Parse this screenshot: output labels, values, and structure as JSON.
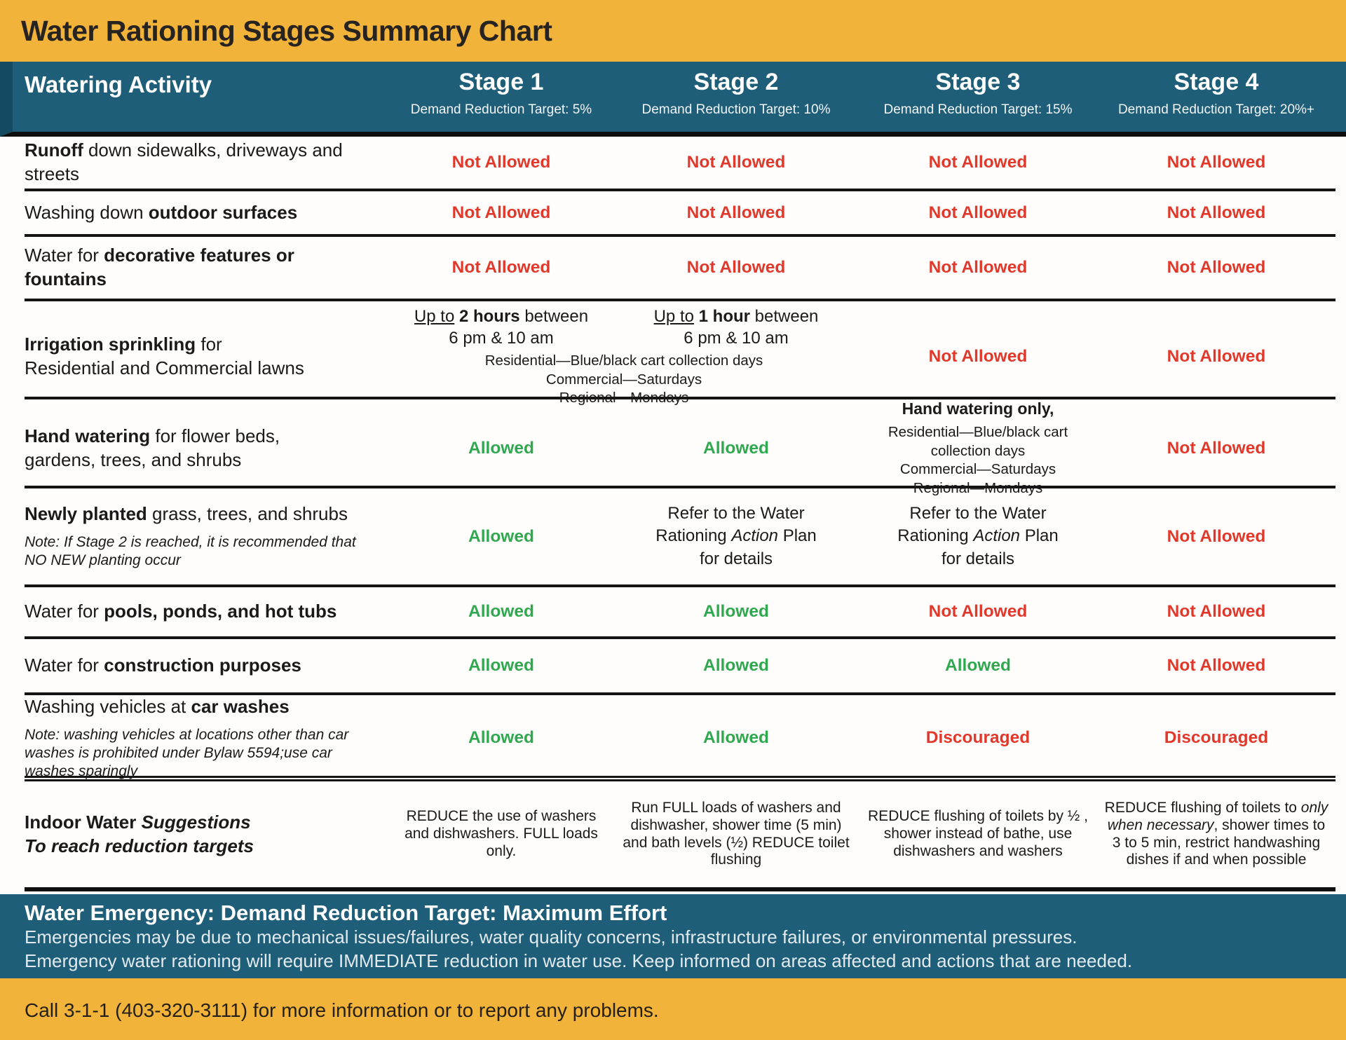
{
  "title": "Water Rationing Stages Summary Chart",
  "colors": {
    "yellow": "#F2B33A",
    "teal": "#1E5E78",
    "red": "#E0392B",
    "green": "#2FA84F",
    "ink": "#1A1A1A"
  },
  "header": {
    "activity": "Watering Activity",
    "stages": [
      {
        "name": "Stage 1",
        "target": "Demand Reduction Target: 5%"
      },
      {
        "name": "Stage 2",
        "target": "Demand Reduction Target: 10%"
      },
      {
        "name": "Stage 3",
        "target": "Demand Reduction Target: 15%"
      },
      {
        "name": "Stage 4",
        "target": "Demand Reduction Target: 20%+"
      }
    ]
  },
  "rows": {
    "runoff": {
      "b": "Runoff",
      "t": " down sidewalks, driveways and streets",
      "s": [
        "Not Allowed",
        "Not Allowed",
        "Not Allowed",
        "Not Allowed"
      ]
    },
    "outdoor": {
      "t1": "Washing down ",
      "b": "outdoor surfaces",
      "s": [
        "Not Allowed",
        "Not Allowed",
        "Not Allowed",
        "Not Allowed"
      ]
    },
    "decorative": {
      "t1": "Water for ",
      "b": "decorative features or fountains",
      "s": [
        "Not Allowed",
        "Not Allowed",
        "Not Allowed",
        "Not Allowed"
      ]
    },
    "irrigation": {
      "b": "Irrigation sprinkling",
      "t": " for",
      "line2": "Residential and Commercial lawns",
      "s1": {
        "u": "Up to",
        "b": " 2 hours",
        "t": " between",
        "time": "6 pm & 10 am"
      },
      "s2": {
        "u": "Up to",
        "b": " 1 hour",
        "t": " between",
        "time": "6 pm & 10 am"
      },
      "schedule": [
        "Residential—Blue/black cart collection days",
        "Commercial—Saturdays",
        "Regional—Mondays"
      ],
      "s3": "Not Allowed",
      "s4": "Not Allowed"
    },
    "handwatering": {
      "b": "Hand watering",
      "t": " for flower beds,",
      "line2": "gardens, trees, and shrubs",
      "s1": "Allowed",
      "s2": "Allowed",
      "s3head": "Hand watering only,",
      "s3lines": [
        "Residential—Blue/black cart collection days",
        "Commercial—Saturdays",
        "Regional—Mondays"
      ],
      "s4": "Not Allowed"
    },
    "newlyplanted": {
      "b": "Newly planted",
      "t": " grass, trees, and shrubs",
      "note": "Note: If Stage 2 is reached, it is recommended that NO NEW planting occur",
      "s1": "Allowed",
      "refer": {
        "t1": "Refer to the Water Rationing ",
        "i": "Action",
        "t2": " Plan for details"
      },
      "s4": "Not Allowed"
    },
    "pools": {
      "t1": "Water for ",
      "b": "pools, ponds, and hot tubs",
      "s": [
        "Allowed",
        "Allowed",
        "Not Allowed",
        "Not Allowed"
      ]
    },
    "construction": {
      "t1": "Water for ",
      "b": "construction purposes",
      "s": [
        "Allowed",
        "Allowed",
        "Allowed",
        "Not Allowed"
      ]
    },
    "carwashes": {
      "t1": "Washing vehicles at ",
      "b": "car washes",
      "note": "Note: washing vehicles at locations other than car washes is prohibited under Bylaw 5594;use car washes sparingly",
      "s": [
        "Allowed",
        "Allowed",
        "Discouraged",
        "Discouraged"
      ]
    },
    "indoor": {
      "b": "Indoor Water ",
      "bi": "Suggestions",
      "line2": "To reach reduction targets",
      "s1": "REDUCE the use of washers and dishwashers. FULL loads only.",
      "s2": "Run FULL loads of washers and dishwasher, shower time (5 min) and bath levels (½) REDUCE toilet flushing",
      "s3": "REDUCE flushing of toilets by ½ , shower instead of bathe, use dishwashers and washers",
      "s4": {
        "t1": "REDUCE flushing of toilets to ",
        "i": "only when necessary",
        "t2": ", shower times to 3 to 5 min, restrict handwashing dishes if and when possible"
      }
    }
  },
  "footer": {
    "emergency_title": "Water Emergency: Demand Reduction Target: Maximum Effort",
    "emergency_line1": "Emergencies may be due to mechanical issues/failures, water quality concerns, infrastructure failures, or environmental pressures.",
    "emergency_line2": "Emergency water rationing will require IMMEDIATE reduction in water use. Keep informed on areas affected and actions that are needed.",
    "contact": "Call 3-1-1 (403-320-3111) for more information or to report any problems."
  }
}
